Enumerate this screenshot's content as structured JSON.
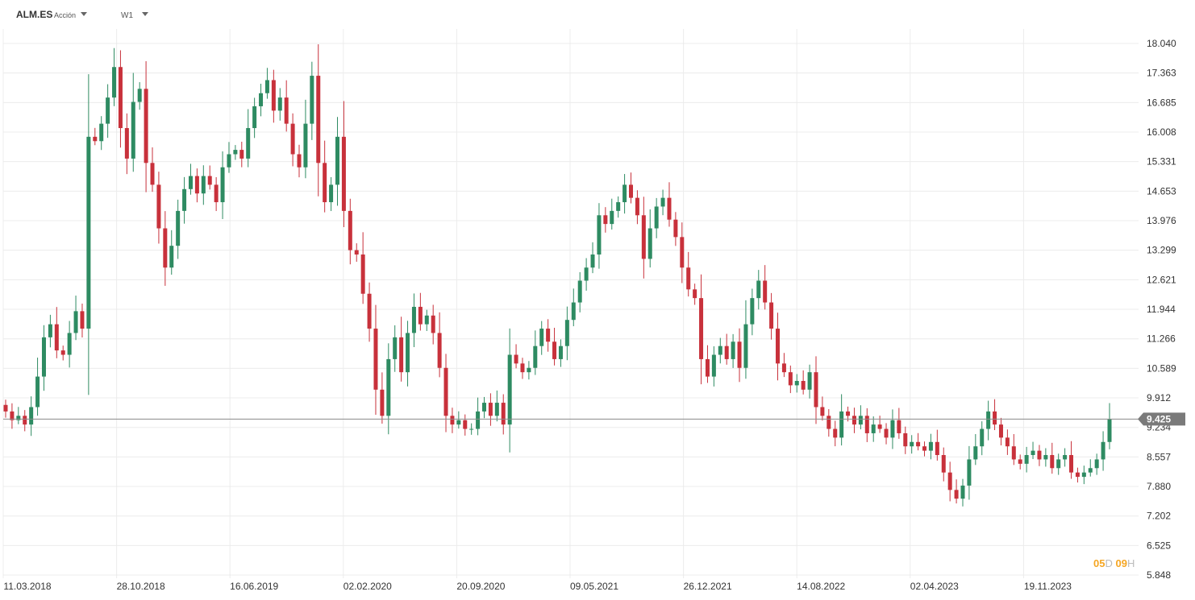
{
  "header": {
    "symbol": "ALM.ES",
    "instrument_type": "Acción",
    "timeframe": "W1"
  },
  "countdown": {
    "d_value": "05",
    "d_unit": "D",
    "h_value": "09",
    "h_unit": "H"
  },
  "colors": {
    "up": "#2e8b62",
    "down": "#c8313b",
    "grid": "#ececec",
    "price_line": "#8a8a8a",
    "price_label_bg": "#7a7a7a"
  },
  "chart_data": {
    "type": "candlestick",
    "title": "",
    "ylim": [
      5.848,
      18.04
    ],
    "y_ticks": [
      "18.040",
      "17.363",
      "16.685",
      "16.008",
      "15.331",
      "14.653",
      "13.976",
      "13.299",
      "12.621",
      "11.944",
      "11.266",
      "10.589",
      "9.912",
      "9.234",
      "8.557",
      "7.880",
      "7.202",
      "6.525",
      "5.848"
    ],
    "x_ticks": [
      "11.03.2018",
      "28.10.2018",
      "16.06.2019",
      "02.02.2020",
      "20.09.2020",
      "09.05.2021",
      "26.12.2021",
      "14.08.2022",
      "02.04.2023",
      "19.11.2023"
    ],
    "current_price": "9.425",
    "current_price_value": 9.425,
    "series": [
      {
        "name": "ALM.ES",
        "close": [
          9.6,
          9.4,
          9.5,
          9.3,
          9.7,
          10.4,
          11.3,
          11.6,
          11.0,
          10.9,
          11.4,
          11.9,
          11.5,
          15.9,
          15.8,
          16.2,
          16.8,
          17.5,
          16.1,
          15.4,
          16.7,
          17.0,
          15.3,
          14.8,
          13.8,
          12.9,
          13.4,
          14.2,
          14.7,
          15.0,
          14.6,
          15.0,
          14.8,
          14.4,
          15.2,
          15.5,
          15.6,
          15.4,
          16.1,
          16.6,
          16.9,
          17.2,
          16.5,
          16.8,
          16.2,
          15.5,
          15.2,
          16.2,
          17.3,
          15.3,
          14.4,
          14.8,
          15.9,
          14.2,
          13.3,
          13.2,
          12.3,
          11.5,
          10.1,
          9.5,
          10.8,
          11.3,
          10.5,
          11.4,
          12.0,
          11.6,
          11.8,
          11.4,
          10.6,
          9.5,
          9.3,
          9.4,
          9.2,
          9.2,
          9.6,
          9.8,
          9.5,
          9.8,
          9.3,
          10.9,
          10.7,
          10.5,
          10.6,
          11.1,
          11.5,
          11.2,
          10.8,
          11.1,
          11.7,
          12.1,
          12.6,
          12.9,
          13.2,
          14.1,
          13.9,
          14.2,
          14.4,
          14.8,
          14.5,
          14.1,
          13.1,
          13.8,
          14.3,
          14.5,
          14.0,
          13.6,
          12.9,
          12.4,
          12.2,
          10.8,
          10.4,
          10.9,
          11.1,
          10.8,
          11.2,
          10.6,
          11.6,
          12.2,
          12.6,
          12.1,
          11.5,
          10.7,
          10.5,
          10.2,
          10.3,
          10.1,
          10.5,
          9.7,
          9.5,
          9.2,
          9.0,
          9.6,
          9.5,
          9.3,
          9.5,
          9.1,
          9.3,
          9.2,
          9.0,
          9.4,
          9.1,
          8.8,
          8.9,
          8.8,
          8.7,
          8.9,
          8.6,
          8.2,
          7.8,
          7.6,
          7.9,
          8.5,
          8.8,
          9.2,
          9.6,
          9.3,
          9.0,
          8.8,
          8.5,
          8.4,
          8.6,
          8.7,
          8.5,
          8.6,
          8.3,
          8.5,
          8.6,
          8.2,
          8.1,
          8.2,
          8.3,
          8.5,
          8.9,
          9.425
        ]
      }
    ]
  }
}
